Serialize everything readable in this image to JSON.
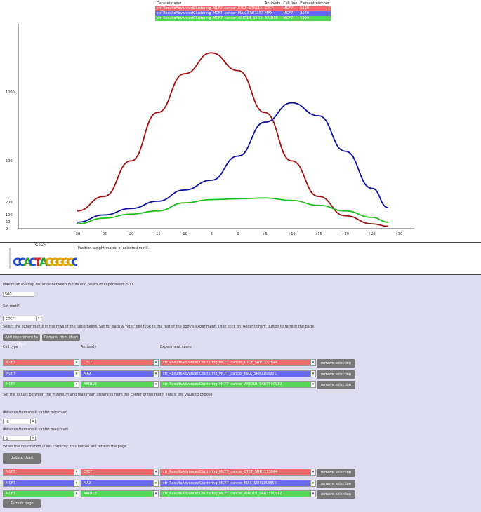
{
  "legend": {
    "headers": [
      "Dataset name",
      "Antibody",
      "Cell line",
      "Element number"
    ],
    "rows": [
      {
        "name": "ctr_ResultsAdvancedClustering_MCF7_cancer_CTCF_SRR1153844",
        "antibody": "CTCF",
        "cell": "MCF7",
        "count": "5590",
        "color": "red"
      },
      {
        "name": "ctr_ResultsAdvancedClustering_MCF7_cancer_MAX_SRR1153850",
        "antibody": "MAX",
        "cell": "MCF7",
        "count": "3570",
        "color": "blue"
      },
      {
        "name": "ctr_ResultsAdvancedClustering_MCF7_cancer_ARID1B_SRR3590912",
        "antibody": "ARID1B",
        "cell": "MCF7",
        "count": "5999",
        "color": "green"
      }
    ]
  },
  "chart_data": {
    "type": "line",
    "x_ticks": [
      "-30",
      "-25",
      "-20",
      "-15",
      "-10",
      "-5",
      "0",
      "+5",
      "+10",
      "+15",
      "+20",
      "+25",
      "+30"
    ],
    "y_ticks": [
      "0",
      "50",
      "100",
      "200",
      "500",
      "1000"
    ],
    "series": [
      {
        "color": "#a01010",
        "x": [
          -30,
          -25,
          -20,
          -15,
          -10,
          -5,
          0,
          5,
          10,
          15,
          20,
          25,
          28
        ],
        "y": [
          110,
          200,
          420,
          720,
          960,
          1090,
          980,
          720,
          420,
          200,
          80,
          30,
          15
        ]
      },
      {
        "color": "#1010a0",
        "x": [
          -30,
          -25,
          -20,
          -15,
          -10,
          -5,
          0,
          5,
          10,
          15,
          20,
          25,
          28
        ],
        "y": [
          40,
          85,
          125,
          170,
          240,
          300,
          450,
          660,
          780,
          700,
          480,
          250,
          130
        ]
      },
      {
        "color": "#20c020",
        "x": [
          -30,
          -25,
          -20,
          -15,
          -10,
          -5,
          0,
          5,
          10,
          15,
          20,
          25,
          28
        ],
        "y": [
          30,
          65,
          90,
          110,
          160,
          180,
          185,
          190,
          175,
          145,
          110,
          70,
          40
        ]
      }
    ],
    "ylim": [
      0,
      1200
    ],
    "xlim": [
      -30,
      30
    ]
  },
  "motif": {
    "title": "CTCF",
    "caption": "Position weight matrix of selected motif.",
    "letters": "CCACTAGGGGGC"
  },
  "form": {
    "distance_label": "Maximum overlap distance between motifs and peaks of experiment: 500",
    "distance_value": "500",
    "show_label": "Set motif?",
    "show_value": "CTCF",
    "instructions": "Select the experiments in the rows of the table below. Set for each a 'right' cell type to the rest of the body's experiment. Then click on 'Recent chart' button to refresh the page.",
    "btn_add": "Add experiment to chart",
    "btn_remove": "Remove from chart",
    "col_celltype": "Cell type",
    "col_antibody": "Antibody",
    "col_experiment": "Experiment name",
    "rows": [
      {
        "cell": "MCF7",
        "antibody": "CTCF",
        "exp": "ctr_ResultsAdvancedClustering_MCF7_cancer_CTCF_SRR1153844",
        "color": "red",
        "btn": "remove selection"
      },
      {
        "cell": "MCF7",
        "antibody": "MAX",
        "exp": "ctr_ResultsAdvancedClustering_MCF7_cancer_MAX_SRR1153850",
        "color": "blue",
        "btn": "remove selection"
      },
      {
        "cell": "MCF7",
        "antibody": "ARID1B",
        "exp": "ctr_ResultsAdvancedClustering_MCF7_cancer_ARID1B_SRR3590912",
        "color": "green",
        "btn": "remove selection"
      }
    ],
    "range_note": "Set the values between the minimum and maximum distances from the center of the motif. This is the value to choose.",
    "min_label": "distance from motif center minimum",
    "min_value": "-5",
    "max_label": "distance from motif center maximum",
    "max_value": "5",
    "update_note": "When the information is set correctly, this button will refresh the page.",
    "btn_update": "Update chart",
    "rows2": [
      {
        "cell": "MCF7",
        "antibody": "CTCF",
        "exp": "ctr_ResultsAdvancedClustering_MCF7_cancer_CTCF_SRR1153844",
        "color": "red",
        "btn": "remove selection"
      },
      {
        "cell": "MCF7",
        "antibody": "MAX",
        "exp": "ctr_ResultsAdvancedClustering_MCF7_cancer_MAX_SRR1153850",
        "color": "blue",
        "btn": "remove selection"
      },
      {
        "cell": "MCF7",
        "antibody": "ARID1B",
        "exp": "ctr_ResultsAdvancedClustering_MCF7_cancer_ARID1B_SRR3590912",
        "color": "green",
        "btn": "remove selection"
      }
    ],
    "btn_refresh": "Refresh page"
  }
}
